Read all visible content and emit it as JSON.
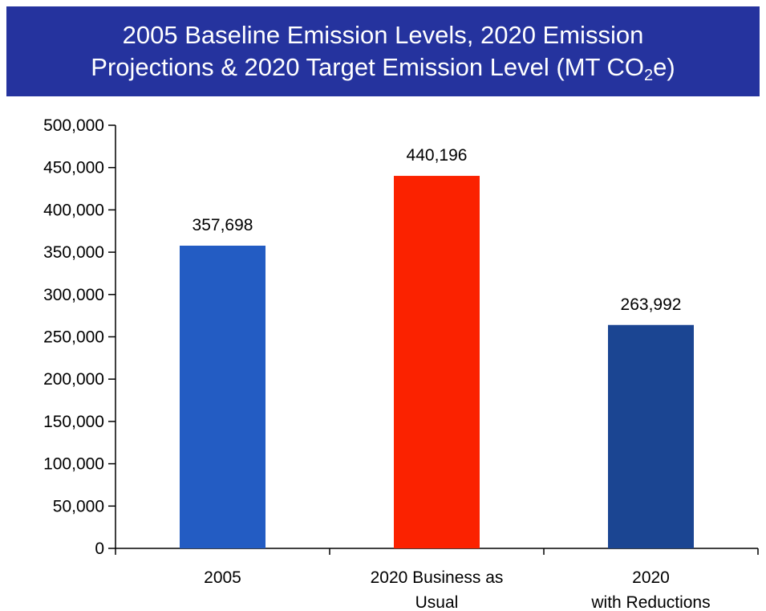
{
  "chart_data": {
    "type": "bar",
    "title_line1": "2005 Baseline Emission Levels, 2020 Emission",
    "title_line2_pre": "Projections & 2020 Target Emission Level (MT CO",
    "title_sub": "2",
    "title_line2_post": "e)",
    "categories": [
      [
        "2005"
      ],
      [
        "2020 Business as",
        "Usual"
      ],
      [
        "2020",
        "with Reductions"
      ]
    ],
    "values": [
      357698,
      440196,
      263992
    ],
    "data_labels": [
      "357,698",
      "440,196",
      "263,992"
    ],
    "colors": [
      "#235cc3",
      "#fb2200",
      "#1b4592"
    ],
    "ylim": [
      0,
      500000
    ],
    "yticks": [
      0,
      50000,
      100000,
      150000,
      200000,
      250000,
      300000,
      350000,
      400000,
      450000,
      500000
    ],
    "ytick_labels": [
      "0",
      "50,000",
      "100,000",
      "150,000",
      "200,000",
      "250,000",
      "300,000",
      "350,000",
      "400,000",
      "450,000",
      "500,000"
    ],
    "xlabel": "",
    "ylabel": "",
    "grid": false
  }
}
